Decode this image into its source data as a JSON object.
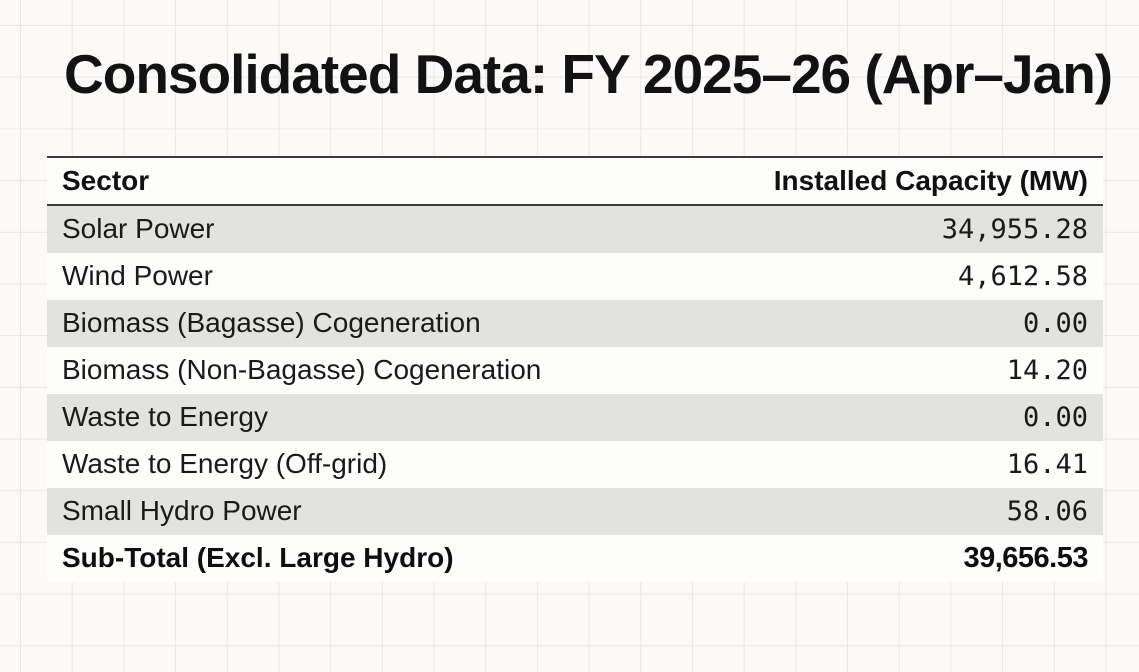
{
  "page": {
    "title": "Consolidated Data: FY 2025–26 (Apr–Jan)"
  },
  "table": {
    "columns": [
      {
        "label": "Sector"
      },
      {
        "label": "Installed Capacity (MW)"
      }
    ],
    "rows": [
      {
        "sector": "Solar Power",
        "capacity": "34,955.28"
      },
      {
        "sector": "Wind Power",
        "capacity": "4,612.58"
      },
      {
        "sector": "Biomass (Bagasse) Cogeneration",
        "capacity": "0.00"
      },
      {
        "sector": "Biomass (Non-Bagasse) Cogeneration",
        "capacity": "14.20"
      },
      {
        "sector": "Waste to Energy",
        "capacity": "0.00"
      },
      {
        "sector": "Waste to Energy (Off-grid)",
        "capacity": "16.41"
      },
      {
        "sector": "Small Hydro Power",
        "capacity": "58.06"
      }
    ],
    "subtotal": {
      "sector": "Sub-Total (Excl. Large Hydro)",
      "capacity": "39,656.53"
    }
  },
  "chart_data": {
    "type": "table",
    "title": "Consolidated Data: FY 2025–26 (Apr–Jan)",
    "columns": [
      "Sector",
      "Installed Capacity (MW)"
    ],
    "rows": [
      [
        "Solar Power",
        34955.28
      ],
      [
        "Wind Power",
        4612.58
      ],
      [
        "Biomass (Bagasse) Cogeneration",
        0.0
      ],
      [
        "Biomass (Non-Bagasse) Cogeneration",
        14.2
      ],
      [
        "Waste to Energy",
        0.0
      ],
      [
        "Waste to Energy (Off-grid)",
        16.41
      ],
      [
        "Small Hydro Power",
        58.06
      ]
    ],
    "subtotal": [
      "Sub-Total (Excl. Large Hydro)",
      39656.53
    ],
    "layout_hints": {
      "striped_rows": "odd rows shaded #e2e2df",
      "numbers_font": "monospace, right-aligned",
      "background": "graph-paper grid"
    }
  }
}
